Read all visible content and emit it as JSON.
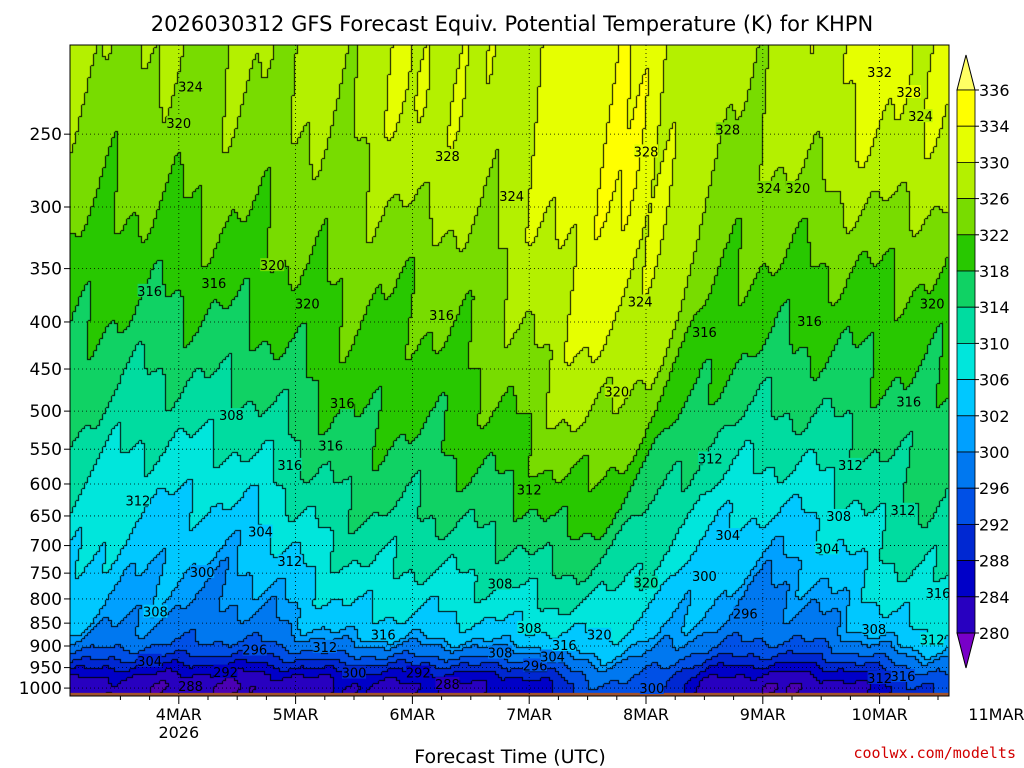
{
  "chart_data": {
    "type": "heatmap",
    "title": "2026030312 GFS Forecast Equiv. Potential Temperature (K) for KHPN",
    "xlabel": "Forecast Time (UTC)",
    "ylabel": "",
    "credit": "coolwx.com/modelts",
    "x_ticks": [
      "4MAR",
      "5MAR",
      "6MAR",
      "7MAR",
      "8MAR",
      "9MAR",
      "10MAR",
      "11MAR"
    ],
    "x_tick_year": "2026",
    "x_range": [
      "2026-03-03T12Z",
      "2026-03-11T00Z"
    ],
    "y_ticks": [
      250,
      300,
      350,
      400,
      450,
      500,
      550,
      600,
      650,
      700,
      750,
      800,
      850,
      900,
      950,
      1000
    ],
    "y_units": "hPa",
    "y_scale": "log",
    "y_range": [
      1020,
      200
    ],
    "grid": true,
    "colorbar": {
      "levels": [
        336,
        334,
        330,
        326,
        322,
        318,
        314,
        310,
        306,
        302,
        300,
        296,
        292,
        288,
        284,
        280
      ],
      "colors": [
        "#ffff00",
        "#e6ff00",
        "#b4f000",
        "#78dc00",
        "#28c800",
        "#10d264",
        "#00dca0",
        "#00e6dc",
        "#00c8ff",
        "#00a0ff",
        "#0078f0",
        "#0050e6",
        "#0028d2",
        "#0000c8",
        "#2800c0",
        "#4b00b4"
      ],
      "triangle_top": "#ffff64",
      "triangle_bottom": "#7800c8"
    },
    "contour_labels": [
      {
        "text": "324",
        "t": 0.6,
        "p": 222
      },
      {
        "text": "320",
        "t": 0.5,
        "p": 243
      },
      {
        "text": "316",
        "t": 0.25,
        "p": 370
      },
      {
        "text": "316",
        "t": 0.8,
        "p": 363
      },
      {
        "text": "320",
        "t": 1.3,
        "p": 347
      },
      {
        "text": "320",
        "t": 1.6,
        "p": 382
      },
      {
        "text": "328",
        "t": 2.8,
        "p": 264
      },
      {
        "text": "324",
        "t": 3.35,
        "p": 292
      },
      {
        "text": "316",
        "t": 2.75,
        "p": 393
      },
      {
        "text": "316",
        "t": 1.9,
        "p": 490
      },
      {
        "text": "316",
        "t": 1.8,
        "p": 545
      },
      {
        "text": "316",
        "t": 1.45,
        "p": 572
      },
      {
        "text": "308",
        "t": 0.95,
        "p": 505
      },
      {
        "text": "312",
        "t": 0.15,
        "p": 625
      },
      {
        "text": "304",
        "t": 1.2,
        "p": 676
      },
      {
        "text": "312",
        "t": 1.45,
        "p": 728
      },
      {
        "text": "300",
        "t": 0.7,
        "p": 748
      },
      {
        "text": "308",
        "t": 0.3,
        "p": 826
      },
      {
        "text": "304",
        "t": 0.25,
        "p": 934
      },
      {
        "text": "296",
        "t": 1.15,
        "p": 908
      },
      {
        "text": "292",
        "t": 0.9,
        "p": 960
      },
      {
        "text": "288",
        "t": 0.6,
        "p": 995
      },
      {
        "text": "312",
        "t": 1.75,
        "p": 902
      },
      {
        "text": "316",
        "t": 2.25,
        "p": 875
      },
      {
        "text": "300",
        "t": 2.0,
        "p": 962
      },
      {
        "text": "292",
        "t": 2.55,
        "p": 962
      },
      {
        "text": "288",
        "t": 2.8,
        "p": 990
      },
      {
        "text": "312",
        "t": 3.5,
        "p": 608
      },
      {
        "text": "308",
        "t": 3.25,
        "p": 770
      },
      {
        "text": "308",
        "t": 3.5,
        "p": 860
      },
      {
        "text": "308",
        "t": 3.25,
        "p": 915
      },
      {
        "text": "296",
        "t": 3.55,
        "p": 945
      },
      {
        "text": "304",
        "t": 3.7,
        "p": 924
      },
      {
        "text": "316",
        "t": 3.8,
        "p": 898
      },
      {
        "text": "320",
        "t": 4.1,
        "p": 875
      },
      {
        "text": "320",
        "t": 4.25,
        "p": 476
      },
      {
        "text": "324",
        "t": 4.45,
        "p": 380
      },
      {
        "text": "328",
        "t": 4.5,
        "p": 261
      },
      {
        "text": "328",
        "t": 5.2,
        "p": 247
      },
      {
        "text": "324",
        "t": 5.55,
        "p": 286
      },
      {
        "text": "320",
        "t": 5.8,
        "p": 286
      },
      {
        "text": "316",
        "t": 5.0,
        "p": 410
      },
      {
        "text": "316",
        "t": 5.9,
        "p": 399
      },
      {
        "text": "312",
        "t": 5.05,
        "p": 563
      },
      {
        "text": "304",
        "t": 5.2,
        "p": 682
      },
      {
        "text": "300",
        "t": 5.0,
        "p": 755
      },
      {
        "text": "320",
        "t": 4.5,
        "p": 768
      },
      {
        "text": "296",
        "t": 5.35,
        "p": 830
      },
      {
        "text": "300",
        "t": 4.55,
        "p": 1000
      },
      {
        "text": "312",
        "t": 6.25,
        "p": 572
      },
      {
        "text": "308",
        "t": 6.15,
        "p": 650
      },
      {
        "text": "312",
        "t": 6.7,
        "p": 640
      },
      {
        "text": "304",
        "t": 6.05,
        "p": 705
      },
      {
        "text": "308",
        "t": 6.45,
        "p": 862
      },
      {
        "text": "312",
        "t": 6.95,
        "p": 885
      },
      {
        "text": "316",
        "t": 6.75,
        "p": 488
      },
      {
        "text": "320",
        "t": 6.95,
        "p": 382
      },
      {
        "text": "324",
        "t": 6.85,
        "p": 239
      },
      {
        "text": "328",
        "t": 6.75,
        "p": 225
      },
      {
        "text": "332",
        "t": 6.5,
        "p": 214
      },
      {
        "text": "316",
        "t": 7.0,
        "p": 788
      },
      {
        "text": "312",
        "t": 6.5,
        "p": 975
      },
      {
        "text": "316",
        "t": 6.7,
        "p": 970
      }
    ]
  }
}
